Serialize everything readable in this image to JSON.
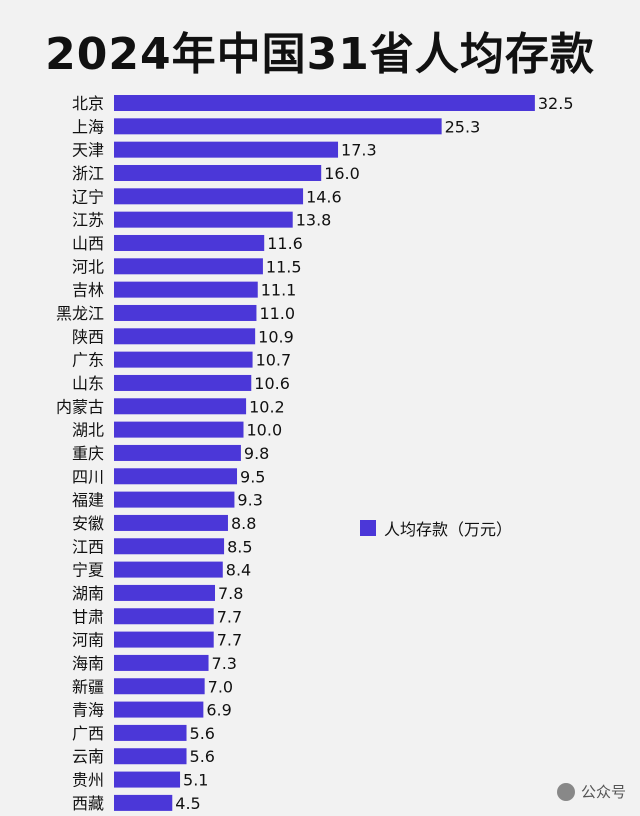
{
  "title": "2024年中国31省人均存款",
  "legend": {
    "label": "人均存款（万元）"
  },
  "watermark": {
    "text": "公众号"
  },
  "colors": {
    "bar": "#4b37d8",
    "background": "#f2f2f2"
  },
  "chart_data": {
    "type": "bar",
    "orientation": "horizontal",
    "title": "2024年中国31省人均存款",
    "xlabel": "",
    "ylabel": "",
    "grid": false,
    "legend_position": "right",
    "categories": [
      "北京",
      "上海",
      "天津",
      "浙江",
      "辽宁",
      "江苏",
      "山西",
      "河北",
      "吉林",
      "黑龙江",
      "陕西",
      "广东",
      "山东",
      "内蒙古",
      "湖北",
      "重庆",
      "四川",
      "福建",
      "安徽",
      "江西",
      "宁夏",
      "湖南",
      "甘肃",
      "河南",
      "海南",
      "新疆",
      "青海",
      "广西",
      "云南",
      "贵州",
      "西藏"
    ],
    "series": [
      {
        "name": "人均存款（万元）",
        "values": [
          32.5,
          25.3,
          17.3,
          16.0,
          14.6,
          13.8,
          11.6,
          11.5,
          11.1,
          11.0,
          10.9,
          10.7,
          10.6,
          10.2,
          10.0,
          9.8,
          9.5,
          9.3,
          8.8,
          8.5,
          8.4,
          7.8,
          7.7,
          7.7,
          7.3,
          7.0,
          6.9,
          5.6,
          5.6,
          5.1,
          4.5
        ],
        "labels": [
          "32.5",
          "25.3",
          "17.3",
          "16.0",
          "14.6",
          "13.8",
          "11.6",
          "11.5",
          "11.1",
          "11.0",
          "10.9",
          "10.7",
          "10.6",
          "10.2",
          "10.0",
          "9.8",
          "9.5",
          "9.3",
          "8.8",
          "8.5",
          "8.4",
          "7.8",
          "7.7",
          "7.7",
          "7.3",
          "7.0",
          "6.9",
          "5.6",
          "5.6",
          "5.1",
          "4.5"
        ]
      }
    ]
  }
}
